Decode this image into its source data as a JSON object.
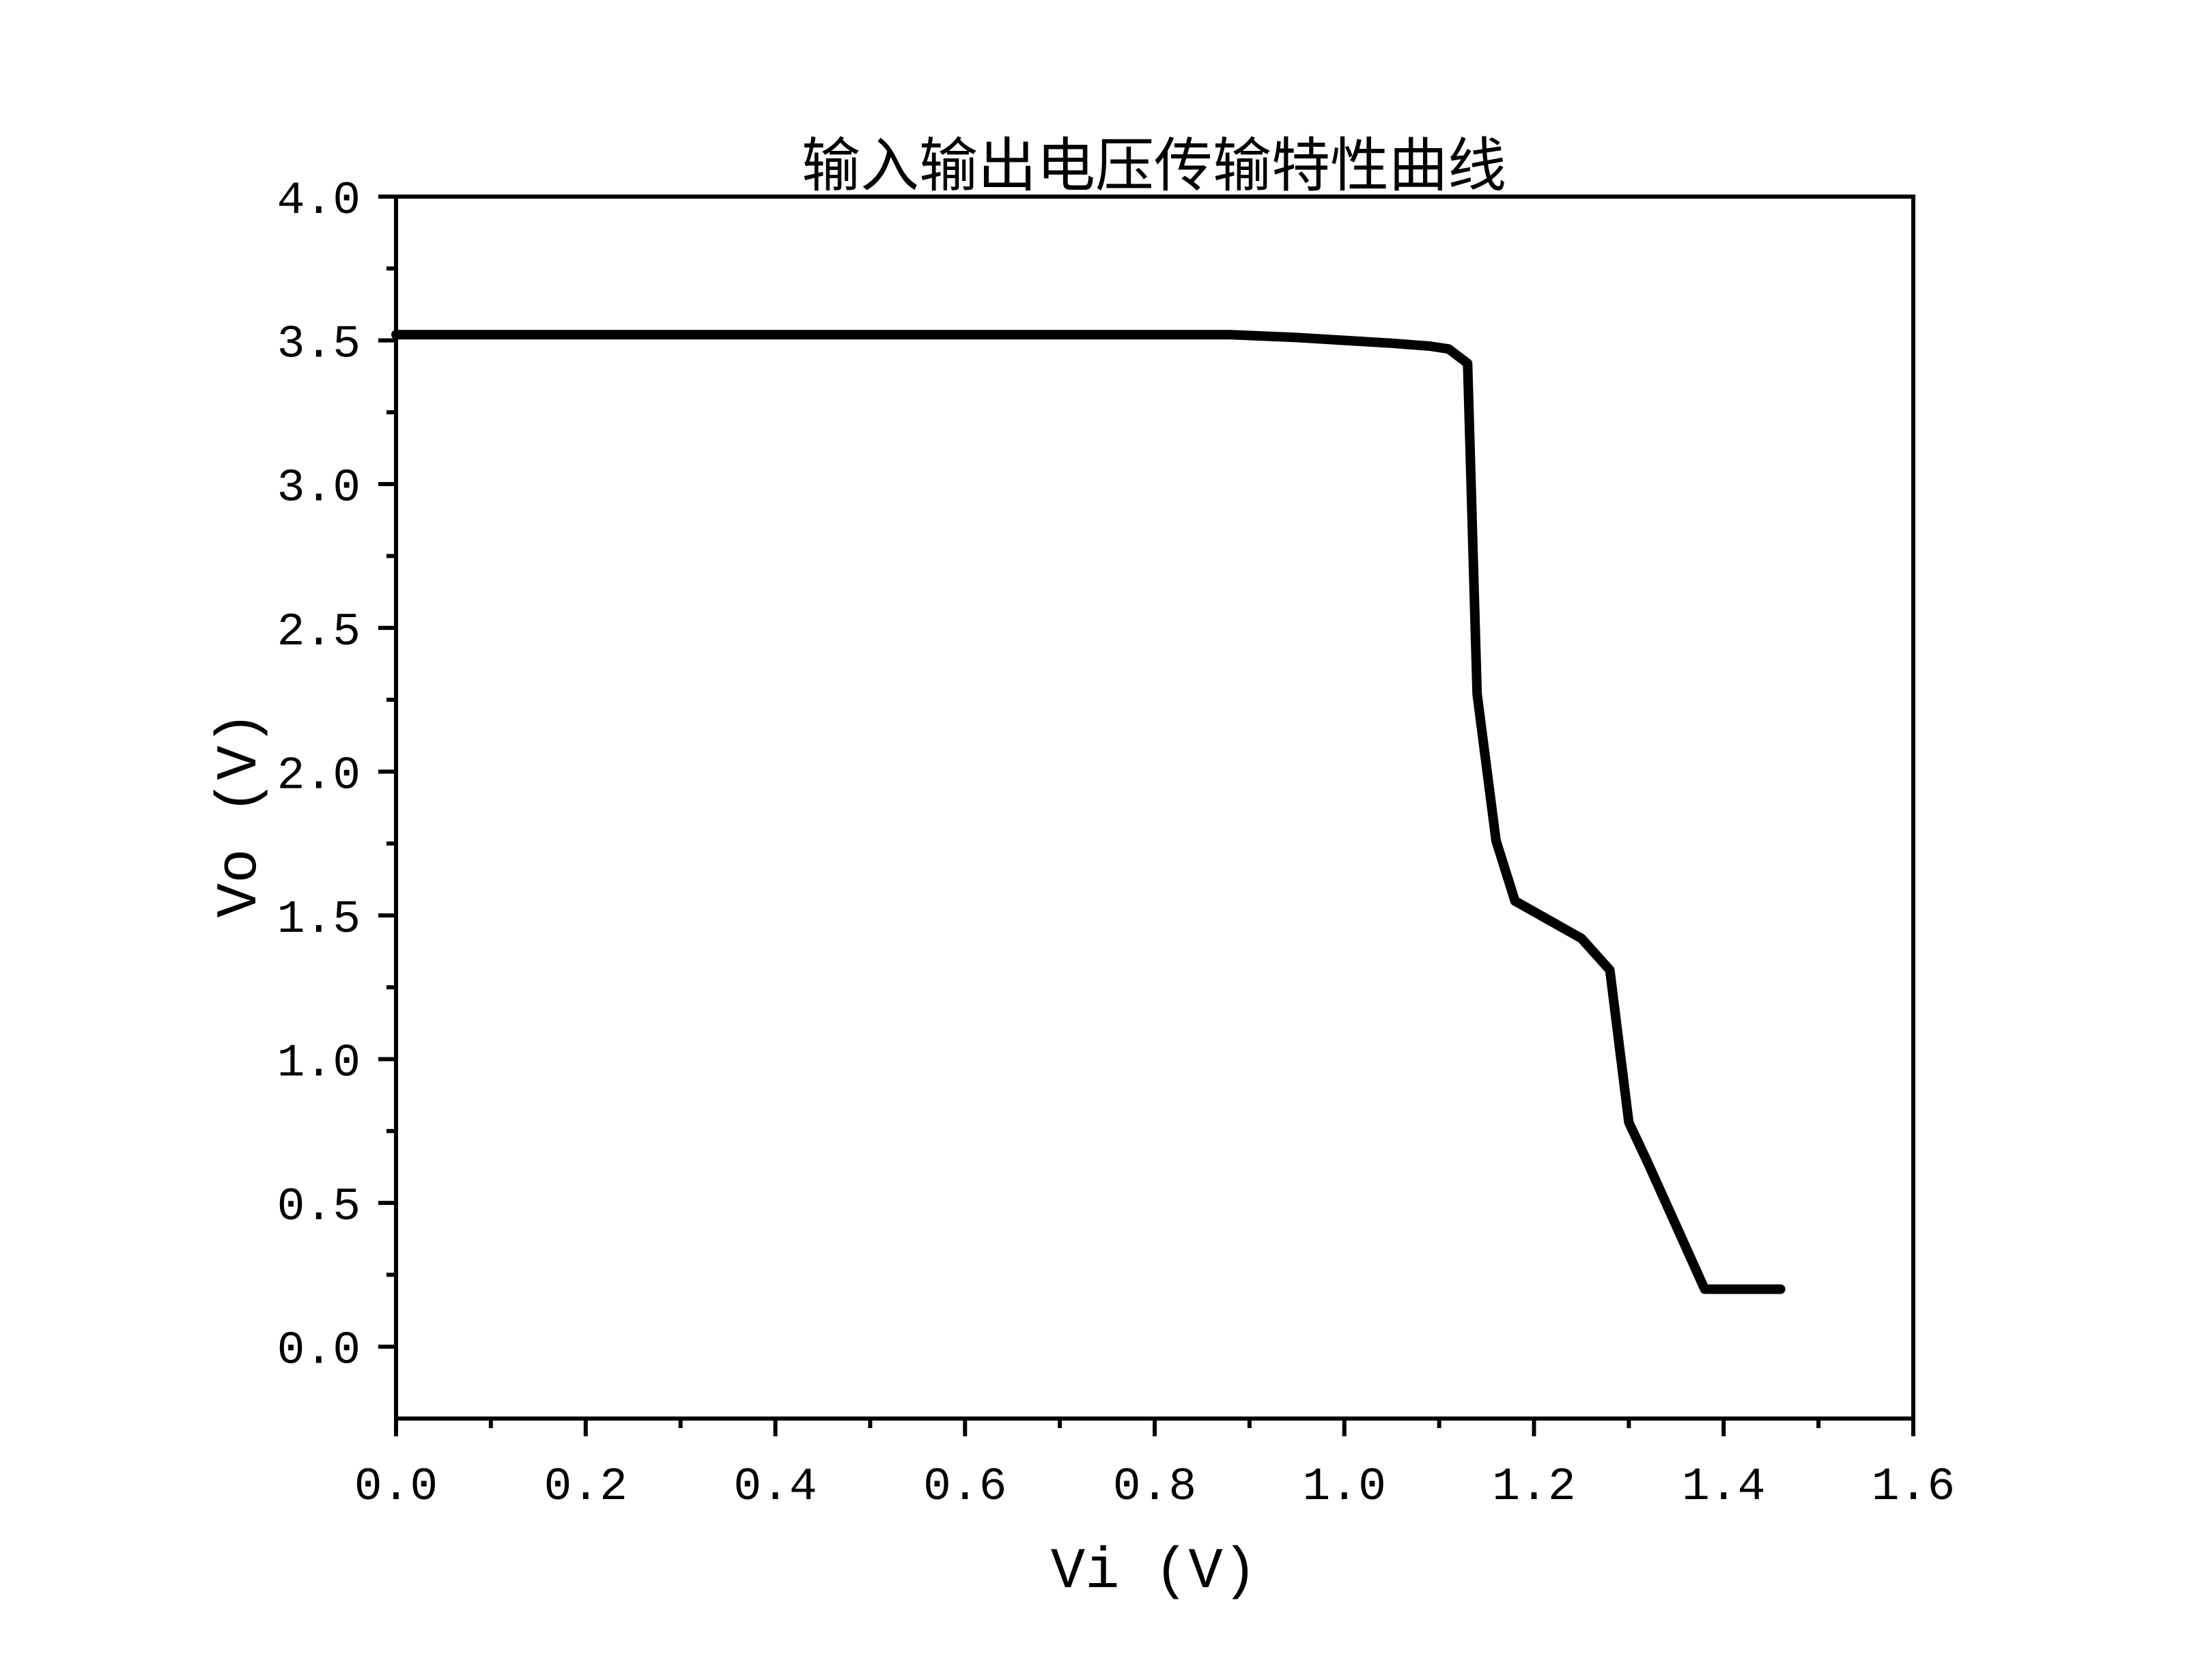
{
  "chart_data": {
    "type": "line",
    "title": "输入输出电压传输特性曲线",
    "xlabel": "Vi (V)",
    "ylabel": "Vo (V)",
    "xlim": [
      0.0,
      1.6
    ],
    "ylim": [
      -0.25,
      4.0
    ],
    "x_ticks": [
      "0.0",
      "0.2",
      "0.4",
      "0.6",
      "0.8",
      "1.0",
      "1.2",
      "1.4",
      "1.6"
    ],
    "x_tick_values": [
      0.0,
      0.2,
      0.4,
      0.6,
      0.8,
      1.0,
      1.2,
      1.4,
      1.6
    ],
    "y_ticks": [
      "0.0",
      "0.5",
      "1.0",
      "1.5",
      "2.0",
      "2.5",
      "3.0",
      "3.5",
      "4.0"
    ],
    "y_tick_values": [
      0.0,
      0.5,
      1.0,
      1.5,
      2.0,
      2.5,
      3.0,
      3.5,
      4.0
    ],
    "grid": false,
    "legend": "none",
    "line_color": "#000000",
    "series": [
      {
        "x": [
          0.0,
          0.2,
          0.4,
          0.6,
          0.8,
          0.88,
          0.95,
          1.0,
          1.05,
          1.09,
          1.11,
          1.13,
          1.14,
          1.16,
          1.18,
          1.25,
          1.28,
          1.3,
          1.32,
          1.35,
          1.38,
          1.4,
          1.46
        ],
        "y": [
          3.52,
          3.52,
          3.52,
          3.52,
          3.52,
          3.52,
          3.51,
          3.5,
          3.49,
          3.48,
          3.47,
          3.42,
          2.27,
          1.76,
          1.55,
          1.42,
          1.31,
          0.78,
          0.64,
          0.42,
          0.2,
          0.2,
          0.2
        ]
      }
    ]
  }
}
